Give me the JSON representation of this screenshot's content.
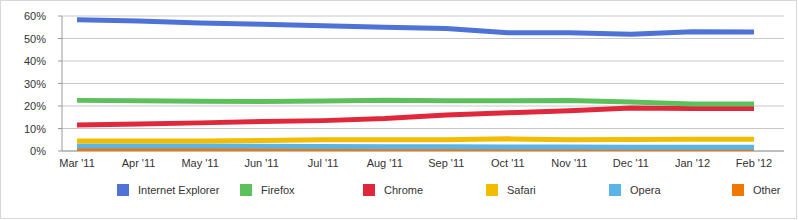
{
  "chart_data": {
    "type": "line",
    "categories": [
      "Mar '11",
      "Apr '11",
      "May '11",
      "Jun '11",
      "Jul '11",
      "Aug '11",
      "Sep '11",
      "Oct '11",
      "Nov '11",
      "Dec '11",
      "Jan '12",
      "Feb '12"
    ],
    "series": [
      {
        "name": "Internet Explorer",
        "color": "#4f72d6",
        "values": [
          58.3,
          57.8,
          56.9,
          56.3,
          55.7,
          55.0,
          54.4,
          52.6,
          52.6,
          51.9,
          53.0,
          52.9
        ]
      },
      {
        "name": "Firefox",
        "color": "#5cc15c",
        "values": [
          22.5,
          22.3,
          22.1,
          22.0,
          22.2,
          22.6,
          22.3,
          22.3,
          22.4,
          21.8,
          20.9,
          20.9
        ]
      },
      {
        "name": "Chrome",
        "color": "#e0283c",
        "values": [
          11.6,
          12.0,
          12.5,
          13.1,
          13.5,
          14.4,
          16.0,
          17.0,
          17.9,
          19.1,
          18.9,
          18.9
        ]
      },
      {
        "name": "Safari",
        "color": "#f2bd00",
        "values": [
          4.5,
          4.5,
          4.5,
          4.7,
          5.0,
          5.0,
          5.0,
          5.4,
          5.0,
          5.1,
          5.2,
          5.2
        ]
      },
      {
        "name": "Opera",
        "color": "#5ab4e8",
        "values": [
          2.2,
          2.2,
          2.2,
          2.1,
          2.0,
          1.9,
          1.9,
          1.8,
          1.8,
          1.7,
          1.7,
          1.7
        ]
      },
      {
        "name": "Other",
        "color": "#f07800",
        "values": [
          0.5,
          0.5,
          0.5,
          0.5,
          0.5,
          0.5,
          0.5,
          0.5,
          0.5,
          0.5,
          0.5,
          0.5
        ]
      }
    ],
    "ylim": [
      0,
      60
    ],
    "yticks": [
      {
        "value": 0,
        "label": "0%"
      },
      {
        "value": 10,
        "label": "10%"
      },
      {
        "value": 20,
        "label": "20%"
      },
      {
        "value": 30,
        "label": "30%"
      },
      {
        "value": 40,
        "label": "40%"
      },
      {
        "value": 50,
        "label": "50%"
      },
      {
        "value": 60,
        "label": "60%"
      }
    ],
    "grid": true,
    "legend": "bottom"
  }
}
